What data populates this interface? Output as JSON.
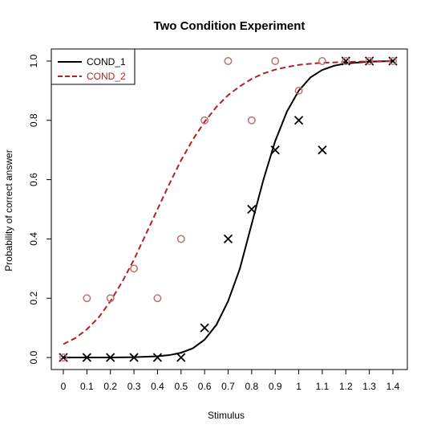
{
  "chart_data": {
    "type": "scatter",
    "title": "Two Condition Experiment",
    "xlabel": "Stimulus",
    "ylabel": "Probability of correct answer",
    "xlim": [
      0,
      1.4
    ],
    "ylim": [
      0,
      1
    ],
    "x_ticks": [
      "0",
      "0.1",
      "0.2",
      "0.3",
      "0.4",
      "0.5",
      "0.6",
      "0.7",
      "0.8",
      "0.9",
      "1",
      "1.1",
      "1.2",
      "1.3",
      "1.4"
    ],
    "y_ticks": [
      "0.0",
      "0.2",
      "0.4",
      "0.6",
      "0.8",
      "1.0"
    ],
    "grid": false,
    "legend_position": "top-left",
    "series": [
      {
        "name": "COND_1",
        "color": "#000000",
        "line_style": "solid",
        "marker": "x",
        "x": [
          0,
          0.1,
          0.2,
          0.3,
          0.4,
          0.5,
          0.6,
          0.7,
          0.8,
          0.9,
          1.0,
          1.1,
          1.2,
          1.3,
          1.4
        ],
        "y": [
          0,
          0,
          0,
          0,
          0,
          0,
          0.1,
          0.4,
          0.5,
          0.7,
          0.8,
          0.7,
          1.0,
          1.0,
          1.0
        ],
        "curve": {
          "x": [
            0,
            0.1,
            0.2,
            0.3,
            0.4,
            0.45,
            0.5,
            0.55,
            0.6,
            0.65,
            0.7,
            0.75,
            0.8,
            0.85,
            0.9,
            0.95,
            1.0,
            1.05,
            1.1,
            1.15,
            1.2,
            1.3,
            1.4
          ],
          "y": [
            0,
            0,
            0,
            0.001,
            0.004,
            0.008,
            0.016,
            0.031,
            0.06,
            0.11,
            0.19,
            0.3,
            0.45,
            0.6,
            0.73,
            0.83,
            0.9,
            0.945,
            0.97,
            0.984,
            0.992,
            0.998,
            1.0
          ]
        }
      },
      {
        "name": "COND_2",
        "color": "#b22222",
        "marker_color": "#c07070",
        "line_style": "dashed",
        "marker": "o",
        "x": [
          0,
          0.1,
          0.2,
          0.3,
          0.4,
          0.5,
          0.6,
          0.7,
          0.8,
          0.9,
          1.0,
          1.1,
          1.2,
          1.3,
          1.4
        ],
        "y": [
          0,
          0.2,
          0.2,
          0.3,
          0.2,
          0.4,
          0.8,
          1.0,
          0.8,
          1.0,
          0.9,
          1.0,
          1.0,
          1.0,
          1.0
        ],
        "curve": {
          "x": [
            0,
            0.05,
            0.1,
            0.15,
            0.2,
            0.25,
            0.3,
            0.35,
            0.4,
            0.45,
            0.5,
            0.55,
            0.6,
            0.65,
            0.7,
            0.75,
            0.8,
            0.85,
            0.9,
            0.95,
            1.0,
            1.05,
            1.1,
            1.2,
            1.3,
            1.4
          ],
          "y": [
            0.045,
            0.065,
            0.095,
            0.135,
            0.19,
            0.255,
            0.33,
            0.415,
            0.5,
            0.585,
            0.665,
            0.735,
            0.795,
            0.845,
            0.885,
            0.915,
            0.94,
            0.958,
            0.971,
            0.98,
            0.987,
            0.991,
            0.994,
            0.997,
            0.999,
            1.0
          ]
        }
      }
    ]
  }
}
